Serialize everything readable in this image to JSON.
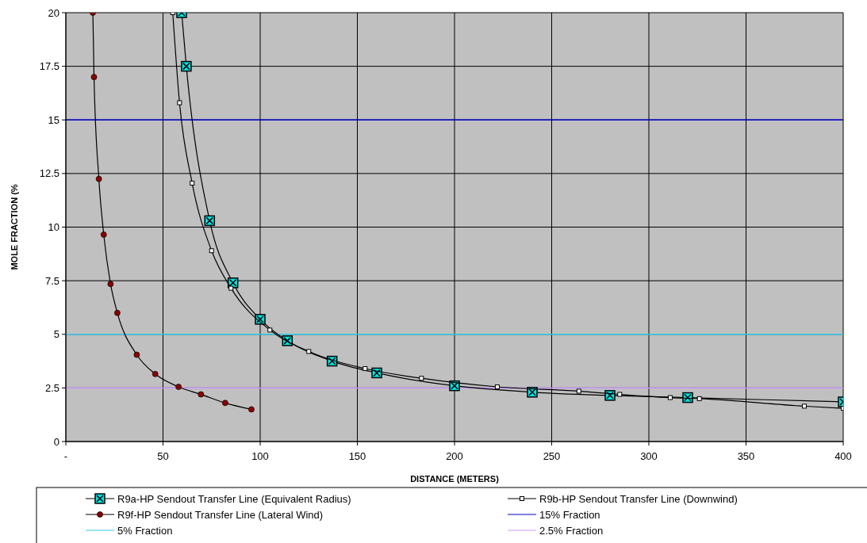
{
  "chart_data": {
    "type": "line",
    "xlabel": "DISTANCE (METERS)",
    "ylabel": "MOLE FRACTION (%",
    "xlim": [
      0,
      400
    ],
    "ylim": [
      0,
      20
    ],
    "xticks": [
      {
        "value": 0,
        "label": "-"
      },
      50,
      100,
      150,
      200,
      250,
      300,
      350,
      400
    ],
    "yticks": [
      0,
      2.5,
      5,
      7.5,
      10,
      12.5,
      15,
      17.5,
      20
    ],
    "grid": true,
    "legend": "bottom",
    "line_style": "solid",
    "series": [
      {
        "name": "R9a-HP Sendout Transfer Line (Equivalent Radius)",
        "color": "#000000",
        "marker": "square",
        "x": [
          59.6,
          62,
          74,
          86,
          100,
          114,
          137,
          160,
          200,
          240,
          280,
          320,
          400
        ],
        "values": [
          20,
          17.5,
          10.3,
          7.4,
          5.7,
          4.7,
          3.75,
          3.2,
          2.6,
          2.3,
          2.15,
          2.05,
          1.85
        ]
      },
      {
        "name": "R9b-HP Sendout Transfer Line (Downwind)",
        "color": "#000000",
        "marker": "square",
        "x": [
          55,
          58.5,
          65,
          75,
          85,
          105,
          125,
          154,
          183,
          222,
          264,
          285,
          311,
          326,
          380,
          400
        ],
        "values": [
          20,
          15.8,
          12.05,
          8.9,
          7.15,
          5.2,
          4.2,
          3.4,
          2.95,
          2.55,
          2.35,
          2.2,
          2.05,
          2.0,
          1.65,
          1.55
        ]
      },
      {
        "name": "R9f-HP Sendout Transfer Line (Lateral Wind)",
        "color": "#000000",
        "marker": "circle",
        "x": [
          13.9,
          14.5,
          17,
          19.5,
          23,
          26.5,
          36.5,
          46,
          58,
          69.5,
          82,
          95.5
        ],
        "values": [
          20,
          17,
          12.25,
          9.65,
          7.35,
          6,
          4.05,
          3.15,
          2.55,
          2.2,
          1.8,
          1.5
        ]
      }
    ],
    "ref_lines": [
      {
        "axis": "y",
        "value": 15,
        "label": "15% Fraction",
        "color": "#0000cc"
      },
      {
        "axis": "y",
        "value": 5,
        "label": "5% Fraction",
        "color": "#33ccee"
      },
      {
        "axis": "y",
        "value": 2.5,
        "label": "2.5% Fraction",
        "color": "#cc99ff"
      }
    ]
  }
}
